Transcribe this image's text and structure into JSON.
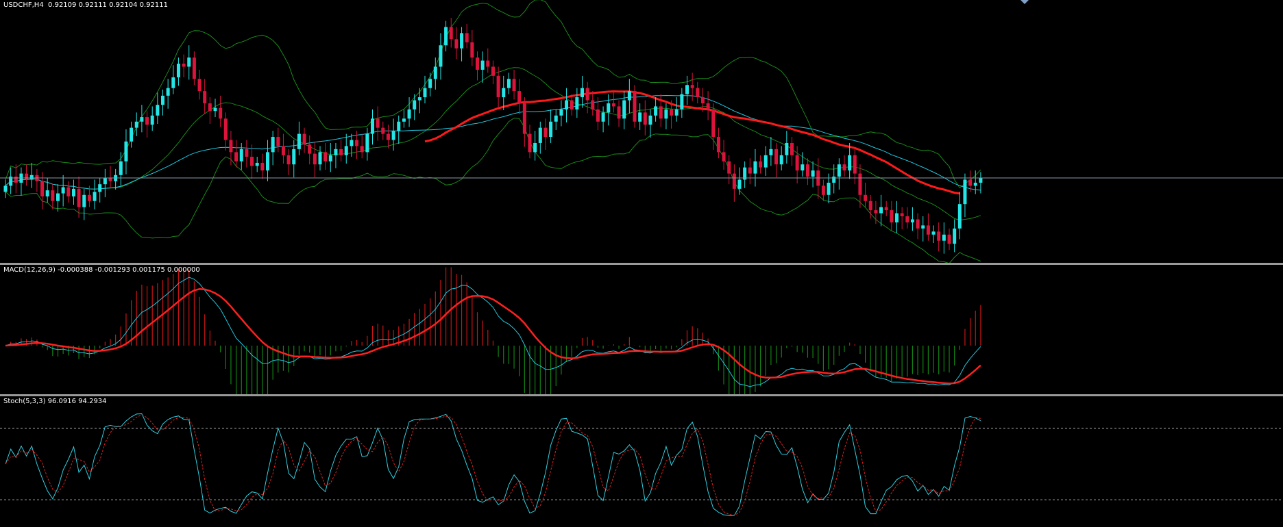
{
  "price_pane": {
    "label": "USDCHF,H4  0.92109 0.92111 0.92104 0.92111"
  },
  "macd_pane": {
    "label": "MACD(12,26,9) -0.000388 -0.001293 0.001175 0.000000"
  },
  "stoch_pane": {
    "label": "Stoch(5,3,3) 96.0916 94.2934"
  },
  "colors": {
    "background": "#000000",
    "bull_candle": "#24e6e6",
    "bear_candle": "#dc143c",
    "bands": "#1a8a1a",
    "ma_cyan": "#20c8e0",
    "ma_red": "#ff1a1a",
    "macd_hist_pos": "#c81414",
    "macd_hist_neg": "#148214",
    "signal": "#ff2020",
    "stoch_main": "#30d0e0",
    "stoch_signal": "#e02020",
    "level_lines": "#b0b0b0",
    "price_line": "#8a9aa8"
  },
  "chart_data": [
    {
      "type": "candlestick",
      "title": "USDCHF,H4",
      "last_quote": [
        0.92109,
        0.92111,
        0.92104,
        0.92111
      ],
      "closes": [
        0.9206,
        0.9212,
        0.9208,
        0.9214,
        0.921,
        0.9213,
        0.9209,
        0.9199,
        0.9203,
        0.9196,
        0.9201,
        0.9205,
        0.9199,
        0.9204,
        0.9192,
        0.92,
        0.9196,
        0.9202,
        0.9207,
        0.9211,
        0.9209,
        0.9213,
        0.9222,
        0.9235,
        0.9244,
        0.9248,
        0.9251,
        0.9246,
        0.9252,
        0.9259,
        0.9265,
        0.927,
        0.9277,
        0.9286,
        0.9284,
        0.929,
        0.9276,
        0.9268,
        0.926,
        0.9255,
        0.9257,
        0.925,
        0.9236,
        0.9228,
        0.9222,
        0.923,
        0.9225,
        0.9219,
        0.9221,
        0.9216,
        0.9228,
        0.9238,
        0.9232,
        0.9226,
        0.922,
        0.923,
        0.924,
        0.9233,
        0.9227,
        0.922,
        0.9228,
        0.9222,
        0.9226,
        0.923,
        0.9226,
        0.9232,
        0.9236,
        0.9232,
        0.9228,
        0.924,
        0.925,
        0.9244,
        0.924,
        0.9236,
        0.9242,
        0.9248,
        0.925,
        0.9256,
        0.9262,
        0.9264,
        0.927,
        0.9276,
        0.9284,
        0.9298,
        0.931,
        0.9302,
        0.9296,
        0.9306,
        0.93,
        0.929,
        0.9282,
        0.9288,
        0.9284,
        0.9278,
        0.9264,
        0.927,
        0.9276,
        0.9268,
        0.926,
        0.924,
        0.9228,
        0.9234,
        0.9244,
        0.9238,
        0.9248,
        0.9252,
        0.9256,
        0.9262,
        0.9256,
        0.9264,
        0.927,
        0.9262,
        0.9256,
        0.9248,
        0.9254,
        0.926,
        0.9258,
        0.925,
        0.9262,
        0.9268,
        0.9248,
        0.9254,
        0.9246,
        0.9252,
        0.9258,
        0.925,
        0.9256,
        0.9252,
        0.9256,
        0.9266,
        0.9272,
        0.927,
        0.9264,
        0.926,
        0.9256,
        0.9238,
        0.9228,
        0.9222,
        0.9214,
        0.9204,
        0.921,
        0.9218,
        0.9214,
        0.9222,
        0.9218,
        0.9226,
        0.923,
        0.922,
        0.9226,
        0.9234,
        0.9226,
        0.9216,
        0.922,
        0.9212,
        0.9216,
        0.9206,
        0.92,
        0.9208,
        0.9212,
        0.922,
        0.9216,
        0.9226,
        0.9214,
        0.92,
        0.9196,
        0.919,
        0.9188,
        0.9192,
        0.919,
        0.9182,
        0.9188,
        0.9186,
        0.9182,
        0.9184,
        0.9178,
        0.918,
        0.9174,
        0.9176,
        0.917,
        0.9174,
        0.9168,
        0.9178,
        0.9194,
        0.921,
        0.9206,
        0.9208,
        0.9211
      ],
      "ylim": [
        0.916,
        0.9325
      ],
      "current_price": 0.92111
    },
    {
      "type": "histogram+line",
      "title": "MACD(12,26,9)",
      "values": [
        -0.000388,
        -0.001293,
        0.001175,
        0.0
      ]
    },
    {
      "type": "line",
      "title": "Stoch(5,3,3)",
      "values": [
        96.0916,
        94.2934
      ],
      "ylim": [
        0,
        100
      ],
      "levels": [
        80,
        20
      ]
    }
  ]
}
